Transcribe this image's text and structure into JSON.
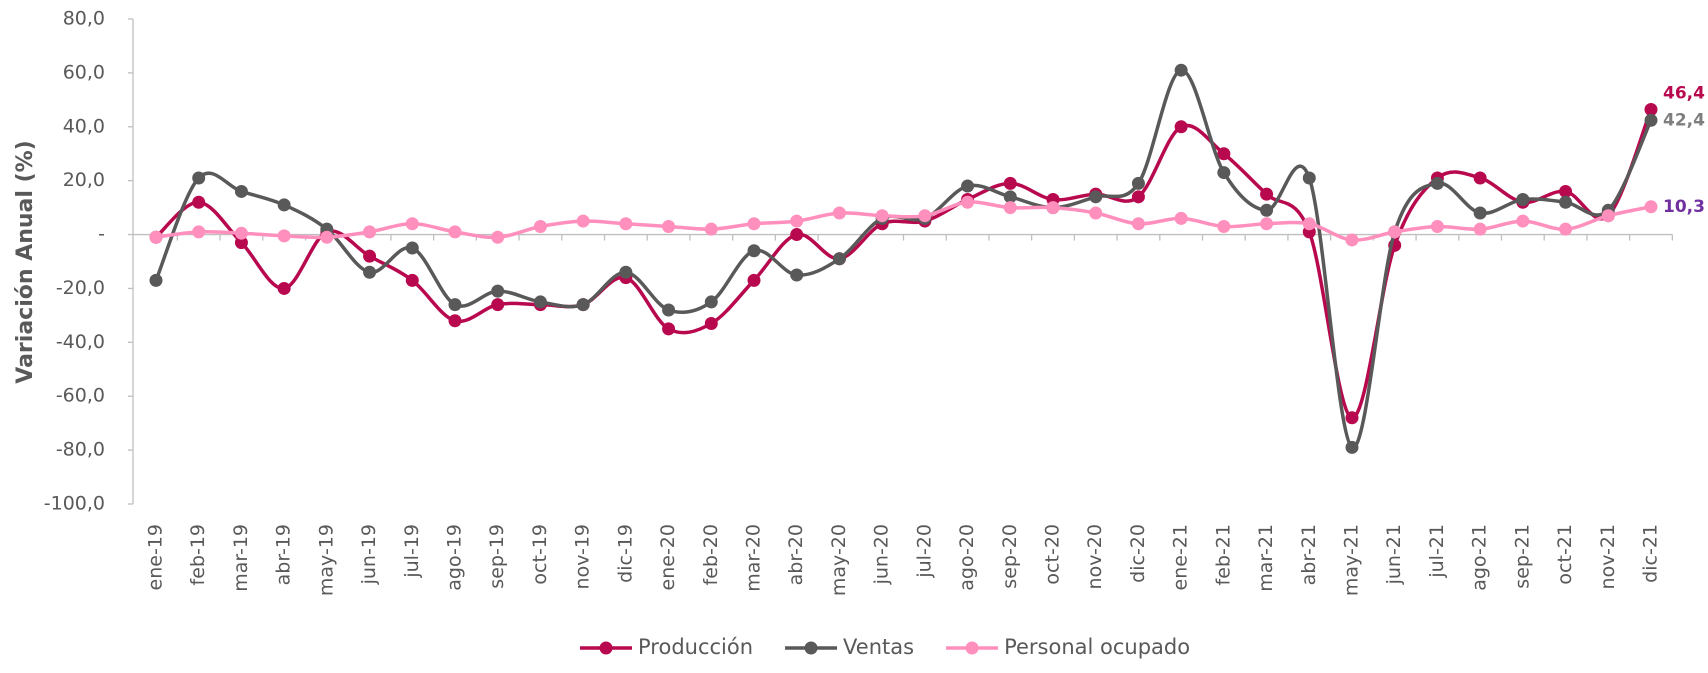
{
  "chart_data": {
    "type": "line",
    "y_axis_label": "Variación Anual (%)",
    "categories": [
      "ene-19",
      "feb-19",
      "mar-19",
      "abr-19",
      "may-19",
      "jun-19",
      "jul-19",
      "ago-19",
      "sep-19",
      "oct-19",
      "nov-19",
      "dic-19",
      "ene-20",
      "feb-20",
      "mar-20",
      "abr-20",
      "may-20",
      "jun-20",
      "jul-20",
      "ago-20",
      "sep-20",
      "oct-20",
      "nov-20",
      "dic-20",
      "ene-21",
      "feb-21",
      "mar-21",
      "abr-21",
      "may-21",
      "jun-21",
      "jul-21",
      "ago-21",
      "sep-21",
      "oct-21",
      "nov-21",
      "dic-21"
    ],
    "series": [
      {
        "name": "Producción",
        "color": "#b8094f",
        "label_color": "#b8094f",
        "values": [
          -1,
          12,
          -3,
          -20,
          1,
          -8,
          -17,
          -32,
          -26,
          -26,
          -26,
          -16,
          -35,
          -33,
          -17,
          0,
          -9,
          4,
          5,
          13,
          19,
          13,
          15,
          14,
          40,
          30,
          15,
          1,
          -68,
          -4,
          21,
          21,
          12,
          16,
          7,
          46.4
        ],
        "value_labels": [
          null,
          null,
          null,
          null,
          null,
          null,
          null,
          null,
          null,
          null,
          null,
          null,
          null,
          null,
          null,
          null,
          null,
          null,
          null,
          null,
          null,
          null,
          null,
          null,
          null,
          null,
          null,
          null,
          null,
          null,
          null,
          null,
          null,
          null,
          null,
          "46,4"
        ]
      },
      {
        "name": "Ventas",
        "color": "#595959",
        "label_color": "#7f7f7f",
        "values": [
          -17,
          21,
          16,
          11,
          2,
          -14,
          -5,
          -26,
          -21,
          -25,
          -26,
          -14,
          -28,
          -25,
          -6,
          -15,
          -9,
          6,
          6,
          18,
          14,
          10,
          14,
          19,
          61,
          23,
          9,
          21,
          -79,
          1,
          19,
          8,
          13,
          12,
          9,
          42.4
        ],
        "value_labels": [
          null,
          null,
          null,
          null,
          null,
          null,
          null,
          null,
          null,
          null,
          null,
          null,
          null,
          null,
          null,
          null,
          null,
          null,
          null,
          null,
          null,
          null,
          null,
          null,
          null,
          null,
          null,
          null,
          null,
          null,
          null,
          null,
          null,
          null,
          null,
          "42,4"
        ]
      },
      {
        "name": "Personal ocupado",
        "color": "#ff8fbd",
        "label_color": "#7030a0",
        "values": [
          -1,
          1,
          0.5,
          -0.5,
          -1,
          1,
          4,
          1,
          -1,
          3,
          5,
          4,
          3,
          2,
          4,
          5,
          8,
          7,
          7,
          12,
          10,
          10,
          8,
          4,
          6,
          3,
          4,
          4,
          -2,
          1,
          3,
          2,
          5,
          2,
          7,
          10.3
        ],
        "value_labels": [
          null,
          null,
          null,
          null,
          null,
          null,
          null,
          null,
          null,
          null,
          null,
          null,
          null,
          null,
          null,
          null,
          null,
          null,
          null,
          null,
          null,
          null,
          null,
          null,
          null,
          null,
          null,
          null,
          null,
          null,
          null,
          null,
          null,
          null,
          null,
          "10,3"
        ]
      }
    ],
    "ylim": [
      -100,
      80
    ],
    "yticks": [
      {
        "value": -100,
        "label": "-100,0"
      },
      {
        "value": -80,
        "label": "-80,0"
      },
      {
        "value": -60,
        "label": "-60,0"
      },
      {
        "value": -40,
        "label": "-40,0"
      },
      {
        "value": -20,
        "label": "-20,0"
      },
      {
        "value": 0,
        "label": "-"
      },
      {
        "value": 20,
        "label": "20,0"
      },
      {
        "value": 40,
        "label": "40,0"
      },
      {
        "value": 60,
        "label": "60,0"
      },
      {
        "value": 80,
        "label": "80,0"
      }
    ],
    "grid": false,
    "legend": "bottom"
  }
}
